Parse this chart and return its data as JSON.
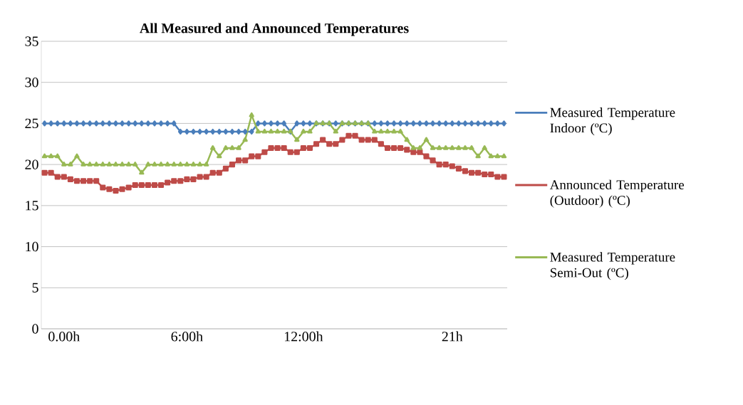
{
  "chart_data": {
    "type": "line",
    "title": "All Measured and Announced Temperatures",
    "categories": [
      null,
      null,
      null,
      "0.00h",
      null,
      null,
      null,
      null,
      null,
      null,
      null,
      null,
      null,
      null,
      null,
      null,
      null,
      null,
      null,
      null,
      null,
      null,
      "6:00h",
      null,
      null,
      null,
      null,
      null,
      null,
      null,
      null,
      null,
      null,
      null,
      null,
      null,
      null,
      null,
      null,
      null,
      "12:00h",
      null,
      null,
      null,
      null,
      null,
      null,
      null,
      null,
      null,
      null,
      null,
      null,
      null,
      null,
      null,
      null,
      null,
      null,
      null,
      null,
      null,
      null,
      "21h",
      null,
      null,
      null,
      null,
      null,
      null,
      null,
      null
    ],
    "ylim": [
      0,
      35
    ],
    "yticks": [
      0,
      5,
      10,
      15,
      20,
      25,
      30,
      35
    ],
    "grid": "y",
    "legend": "right",
    "series": [
      {
        "name": "Measured Temperature Indoor (ºC)",
        "color": "#4a7ebb",
        "marker": "diamond",
        "values": [
          25,
          25,
          25,
          25,
          25,
          25,
          25,
          25,
          25,
          25,
          25,
          25,
          25,
          25,
          25,
          25,
          25,
          25,
          25,
          25,
          25,
          24,
          24,
          24,
          24,
          24,
          24,
          24,
          24,
          24,
          24,
          24,
          24,
          25,
          25,
          25,
          25,
          25,
          24,
          25,
          25,
          25,
          25,
          25,
          25,
          25,
          25,
          25,
          25,
          25,
          25,
          25,
          25,
          25,
          25,
          25,
          25,
          25,
          25,
          25,
          25,
          25,
          25,
          25,
          25,
          25,
          25,
          25,
          25,
          25,
          25,
          25
        ]
      },
      {
        "name": "Announced Temperature (Outdoor) (ºC)",
        "color": "#be4b48",
        "marker": "square",
        "values": [
          19,
          19,
          18.5,
          18.5,
          18.2,
          18,
          18,
          18,
          18,
          17.2,
          17,
          16.8,
          17,
          17.2,
          17.5,
          17.5,
          17.5,
          17.5,
          17.5,
          17.8,
          18,
          18,
          18.2,
          18.2,
          18.5,
          18.5,
          19,
          19,
          19.5,
          20,
          20.5,
          20.5,
          21,
          21,
          21.5,
          22,
          22,
          22,
          21.5,
          21.5,
          22,
          22,
          22.5,
          23,
          22.5,
          22.5,
          23,
          23.5,
          23.5,
          23,
          23,
          23,
          22.5,
          22,
          22,
          22,
          21.8,
          21.5,
          21.5,
          21,
          20.5,
          20,
          20,
          19.8,
          19.5,
          19.2,
          19,
          19,
          18.8,
          18.8,
          18.5,
          18.5
        ]
      },
      {
        "name": "Measured Temperature Semi-Out (ºC)",
        "color": "#98b954",
        "marker": "triangle",
        "values": [
          21,
          21,
          21,
          20,
          20,
          21,
          20,
          20,
          20,
          20,
          20,
          20,
          20,
          20,
          20,
          19,
          20,
          20,
          20,
          20,
          20,
          20,
          20,
          20,
          20,
          20,
          22,
          21,
          22,
          22,
          22,
          23,
          26,
          24,
          24,
          24,
          24,
          24,
          24,
          23,
          24,
          24,
          25,
          25,
          25,
          24,
          25,
          25,
          25,
          25,
          25,
          24,
          24,
          24,
          24,
          24,
          23,
          22,
          22,
          23,
          22,
          22,
          22,
          22,
          22,
          22,
          22,
          21,
          22,
          21,
          21,
          21
        ]
      }
    ]
  }
}
